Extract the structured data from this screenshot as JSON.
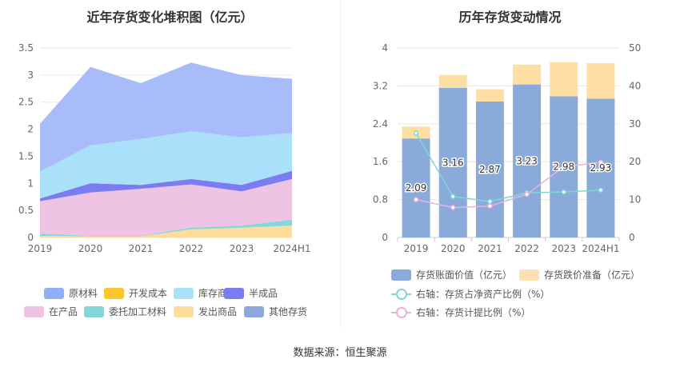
{
  "left_chart": {
    "title": "近年存货变化堆积图（亿元）",
    "legend": [
      {
        "name": "原材料",
        "color": "#8fb0f5"
      },
      {
        "name": "开发成本",
        "color": "#fcc72d"
      },
      {
        "name": "库存商品",
        "color": "#abe0fb"
      },
      {
        "name": "半成品",
        "color": "#7b7cf0"
      },
      {
        "name": "在产品",
        "color": "#efc3e3"
      },
      {
        "name": "委托加工材料",
        "color": "#81d7d9"
      },
      {
        "name": "发出商品",
        "color": "#fedd9c"
      },
      {
        "name": "其他存货",
        "color": "#8fa9e0"
      }
    ]
  },
  "right_chart": {
    "title": "历年存货变动情况",
    "legend": [
      {
        "name": "存货账面价值（亿元）",
        "color": "#8aaad9"
      },
      {
        "name": "存货跌价准备（亿元）",
        "color": "#fde0b2"
      },
      {
        "name": "右轴：存货占净资产比例（%）",
        "color": "#7fd6d8"
      },
      {
        "name": "右轴：存货计提比例（%）",
        "color": "#e9b3dc"
      }
    ]
  },
  "chart_data": [
    {
      "type": "area",
      "stacked": true,
      "title": "近年存货变化堆积图（亿元）",
      "categories": [
        "2019",
        "2020",
        "2021",
        "2022",
        "2023",
        "2024H1"
      ],
      "ylim": [
        0,
        3.5
      ],
      "yticks": [
        0,
        0.5,
        1,
        1.5,
        2,
        2.5,
        3,
        3.5
      ],
      "series": [
        {
          "name": "发出商品",
          "color": "#fedd9c",
          "values": [
            0.03,
            0.02,
            0.02,
            0.15,
            0.18,
            0.22
          ]
        },
        {
          "name": "委托加工材料",
          "color": "#81d7d9",
          "values": [
            0.04,
            0.01,
            0.01,
            0.03,
            0.04,
            0.11
          ]
        },
        {
          "name": "在产品",
          "color": "#efc3e3",
          "values": [
            0.6,
            0.8,
            0.87,
            0.8,
            0.63,
            0.75
          ]
        },
        {
          "name": "半成品",
          "color": "#7b7cf0",
          "values": [
            0.05,
            0.17,
            0.07,
            0.1,
            0.12,
            0.15
          ]
        },
        {
          "name": "库存商品",
          "color": "#abe0fb",
          "values": [
            0.5,
            0.7,
            0.85,
            0.88,
            0.88,
            0.7
          ]
        },
        {
          "name": "原材料",
          "color": "#a8bcfa",
          "values": [
            0.88,
            1.45,
            1.03,
            1.27,
            1.15,
            1.0
          ]
        }
      ],
      "legend": [
        "原材料",
        "开发成本",
        "库存商品",
        "半成品",
        "在产品",
        "委托加工材料",
        "发出商品",
        "其他存货"
      ],
      "legend_position": "bottom"
    },
    {
      "type": "bar",
      "title": "历年存货变动情况",
      "categories": [
        "2019",
        "2020",
        "2021",
        "2022",
        "2023",
        "2024H1"
      ],
      "ylim": [
        0,
        4
      ],
      "yticks": [
        0,
        0.8,
        1.6,
        2.4,
        3.2,
        4
      ],
      "y2lim": [
        0,
        50
      ],
      "y2ticks": [
        0,
        10,
        20,
        30,
        40,
        50
      ],
      "series": [
        {
          "name": "存货账面价值（亿元）",
          "type": "bar",
          "stack": "inv",
          "color": "#8aaad9",
          "values": [
            2.09,
            3.16,
            2.87,
            3.23,
            2.98,
            2.93
          ],
          "labels": [
            "2.09",
            "3.16",
            "2.87",
            "3.23",
            "2.98",
            "2.93"
          ]
        },
        {
          "name": "存货跌价准备（亿元）",
          "type": "bar",
          "stack": "inv",
          "color": "#fddfa4",
          "values": [
            0.25,
            0.27,
            0.26,
            0.42,
            0.72,
            0.75
          ]
        },
        {
          "name": "右轴：存货占净资产比例（%）",
          "type": "line",
          "axis": "right",
          "color": "#7fd6d8",
          "values": [
            27.5,
            10.8,
            9.5,
            11.8,
            12.0,
            12.5
          ]
        },
        {
          "name": "右轴：存货计提比例（%）",
          "type": "line",
          "axis": "right",
          "color": "#e9b3dc",
          "values": [
            10.0,
            7.9,
            8.3,
            11.4,
            18.7,
            19.8
          ]
        }
      ],
      "legend_position": "bottom"
    }
  ],
  "footer": {
    "source": "数据来源：恒生聚源"
  }
}
